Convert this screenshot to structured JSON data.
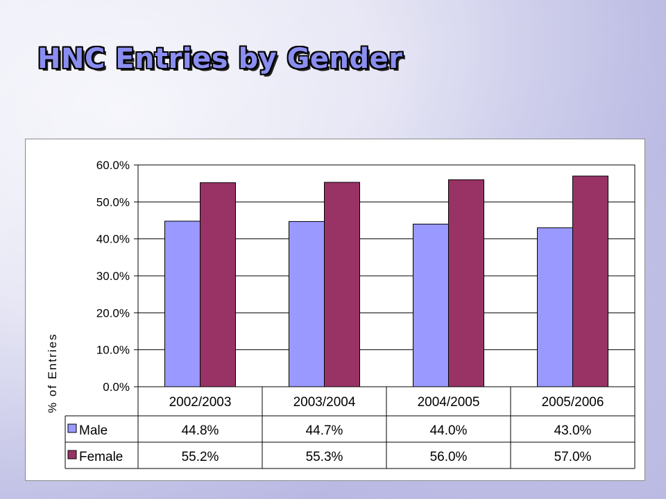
{
  "slide": {
    "title": "HNC Entries by Gender"
  },
  "colors": {
    "male": "#9999FF",
    "female": "#993366"
  },
  "chart_data": {
    "type": "bar",
    "categories": [
      "2002/2003",
      "2003/2004",
      "2004/2005",
      "2005/2006"
    ],
    "series": [
      {
        "name": "Male",
        "values": [
          44.8,
          44.7,
          44.0,
          43.0
        ],
        "labels": [
          "44.8%",
          "44.7%",
          "44.0%",
          "43.0%"
        ]
      },
      {
        "name": "Female",
        "values": [
          55.2,
          55.3,
          56.0,
          57.0
        ],
        "labels": [
          "55.2%",
          "55.3%",
          "56.0%",
          "57.0%"
        ]
      }
    ],
    "ylabel": "% of Entries",
    "ylim": [
      0,
      60
    ],
    "yticks": [
      "0.0%",
      "10.0%",
      "20.0%",
      "30.0%",
      "40.0%",
      "50.0%",
      "60.0%"
    ],
    "grid": true,
    "legend": "data table"
  }
}
